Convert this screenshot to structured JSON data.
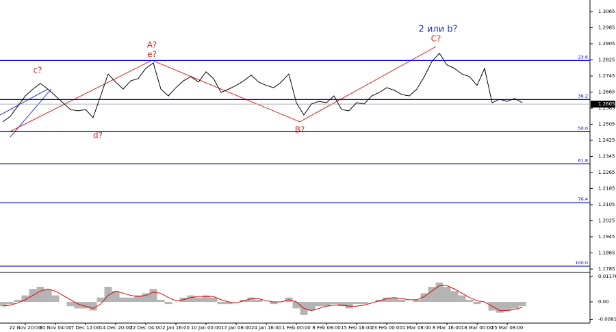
{
  "chart_data": [
    {
      "type": "line",
      "categories": [
        null,
        null,
        null,
        "22 Nov 20:00",
        null,
        null,
        null,
        "30 Nov 04:00",
        null,
        null,
        null,
        "7 Dec 12:00",
        null,
        null,
        null,
        "14 Dec 20:00",
        null,
        null,
        null,
        "22 Dec 04:00",
        null,
        null,
        null,
        "2 Jan 16:00",
        null,
        null,
        null,
        "10 Jan 00:00",
        null,
        null,
        null,
        "17 Jan 08:00",
        null,
        null,
        null,
        "24 Jan 16:00",
        null,
        null,
        null,
        "1 Feb 00:00",
        null,
        null,
        null,
        "8 Feb 08:00",
        null,
        null,
        null,
        "15 Feb 16:00",
        null,
        null,
        null,
        "23 Feb 00:00",
        null,
        null,
        null,
        "1 Mar 08:00",
        null,
        null,
        null,
        "8 Mar 16:00",
        null,
        null,
        null,
        "18 Mar 00:00",
        null,
        null,
        null,
        "25 Mar 08:00",
        null,
        null
      ],
      "values": [
        1.2517,
        1.2544,
        1.2595,
        1.2646,
        1.268,
        1.2708,
        1.268,
        1.2646,
        1.2612,
        1.2578,
        1.2572,
        1.2578,
        1.2538,
        1.2646,
        1.2755,
        1.2715,
        1.268,
        1.2721,
        1.2732,
        1.2783,
        1.281,
        1.268,
        1.2646,
        1.2687,
        1.2721,
        1.2742,
        1.2715,
        1.2766,
        1.2732,
        1.2663,
        1.268,
        1.2698,
        1.2721,
        1.2749,
        1.2715,
        1.2698,
        1.2687,
        1.2715,
        1.2755,
        1.2612,
        1.2551,
        1.2606,
        1.2619,
        1.2612,
        1.2646,
        1.2578,
        1.2572,
        1.2612,
        1.2606,
        1.2646,
        1.2663,
        1.2687,
        1.2674,
        1.2653,
        1.2646,
        1.268,
        1.2742,
        1.2817,
        1.2858,
        1.28,
        1.2783,
        1.2755,
        1.2742,
        1.2698,
        1.2783,
        1.2612,
        1.2629,
        1.2619,
        1.2633,
        1.2612
      ],
      "color": "#000000",
      "ylim": [
        1.1768,
        1.3123
      ],
      "yticks": [
        1.3065,
        1.2985,
        1.2905,
        1.2825,
        1.2745,
        1.2665,
        1.2585,
        1.2505,
        1.2425,
        1.2345,
        1.2265,
        1.2185,
        1.2105,
        1.2025,
        1.1945,
        1.1865,
        1.1785
      ],
      "last_price": 1.2605,
      "levels": [
        {
          "label": "23.6",
          "value": 1.2822
        },
        {
          "label": "38.2",
          "value": 1.2628
        },
        {
          "label": "50.0",
          "value": 1.2468
        },
        {
          "label": "61.8",
          "value": 1.2308
        },
        {
          "label": "76.4",
          "value": 1.2115
        },
        {
          "label": "100.0",
          "value": 1.1799
        }
      ],
      "level_color": "#0000cc",
      "annotations": [
        "c?",
        "d?",
        "A?",
        "e?",
        "B?",
        "C?",
        "2 или b?"
      ]
    },
    {
      "type": "bar",
      "values": [
        -0.002,
        -0.001,
        0.001,
        0.003,
        0.006,
        0.007,
        0.006,
        0.003,
        0,
        -0.002,
        -0.003,
        -0.003,
        -0.004,
        0.002,
        0.007,
        0.005,
        0.002,
        0.002,
        0.003,
        0.004,
        0.006,
        0.001,
        -0.001,
        0,
        0.002,
        0.003,
        0.002,
        0.003,
        0.002,
        -0.001,
        -0.001,
        0,
        0.001,
        0.002,
        0.001,
        0,
        -0.001,
        0,
        0.002,
        -0.003,
        -0.006,
        -0.004,
        -0.002,
        -0.002,
        -0.001,
        -0.002,
        -0.003,
        -0.001,
        -0.001,
        0,
        0.001,
        0.002,
        0.002,
        0.001,
        0,
        0.001,
        0.004,
        0.007,
        0.009,
        0.007,
        0.005,
        0.003,
        0.001,
        -0.001,
        0,
        -0.004,
        -0.005,
        -0.004,
        -0.003,
        -0.002
      ],
      "color": "#b4b4b4",
      "signal": [
        -0.002,
        -0.0015,
        -0.0005,
        0.001,
        0.003,
        0.005,
        0.006,
        0.005,
        0.003,
        0.001,
        -0.001,
        -0.002,
        -0.003,
        -0.001,
        0.003,
        0.005,
        0.004,
        0.003,
        0.0025,
        0.003,
        0.0045,
        0.004,
        0.002,
        0.0005,
        0.001,
        0.002,
        0.0025,
        0.0025,
        0.0025,
        0.001,
        0,
        -0.0005,
        0.0005,
        0.0015,
        0.0015,
        0.0005,
        0,
        0,
        0.001,
        0,
        -0.003,
        -0.004,
        -0.003,
        -0.002,
        -0.0015,
        -0.0015,
        -0.002,
        -0.002,
        -0.0015,
        -0.0005,
        0.0005,
        0.0015,
        0.002,
        0.0015,
        0.001,
        0.001,
        0.0025,
        0.005,
        0.0075,
        0.0075,
        0.006,
        0.004,
        0.002,
        0.0005,
        0,
        -0.002,
        -0.004,
        -0.004,
        -0.0035,
        -0.0025
      ],
      "signal_color": "#e00000",
      "ylim": [
        -0.00985,
        0.01367
      ],
      "yticks": [
        0.01176,
        {
          "value": 0,
          "label": "0.00"
        },
        -0.0081
      ]
    }
  ]
}
